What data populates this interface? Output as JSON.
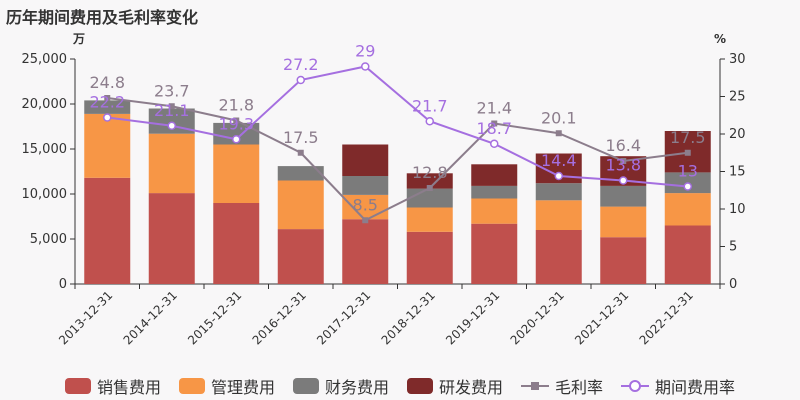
{
  "title": "历年期间费用及毛利率变化",
  "colors": {
    "sales": "#c0504d",
    "admin": "#f79646",
    "finance": "#7b7b7b",
    "rd": "#7f2a2a",
    "gross": "#8c7d8c",
    "period": "#a56fe0"
  },
  "chart_data": {
    "type": "bar",
    "title": "历年期间费用及毛利率变化",
    "categories": [
      "2013-12-31",
      "2014-12-31",
      "2015-12-31",
      "2016-12-31",
      "2017-12-31",
      "2018-12-31",
      "2019-12-31",
      "2020-12-31",
      "2021-12-31",
      "2022-12-31"
    ],
    "y_left": {
      "unit": "万",
      "ylim": [
        0,
        25000
      ],
      "ticks": [
        "0",
        "5,000",
        "10,000",
        "15,000",
        "20,000",
        "25,000"
      ]
    },
    "y_right": {
      "unit": "%",
      "ylim": [
        0,
        30
      ],
      "ticks": [
        "0",
        "5",
        "10",
        "15",
        "20",
        "25",
        "30"
      ]
    },
    "bar_series": [
      {
        "key": "sales",
        "name": "销售费用",
        "values": [
          11800,
          10100,
          9000,
          6100,
          7200,
          5800,
          6700,
          6000,
          5200,
          6500
        ]
      },
      {
        "key": "admin",
        "name": "管理费用",
        "values": [
          7100,
          6600,
          6500,
          5400,
          2700,
          2700,
          2800,
          3300,
          3400,
          3600
        ]
      },
      {
        "key": "finance",
        "name": "财务费用",
        "values": [
          1500,
          2800,
          2400,
          1600,
          2100,
          2100,
          1400,
          1900,
          2300,
          2300
        ]
      },
      {
        "key": "rd",
        "name": "研发费用",
        "values": [
          0,
          0,
          0,
          0,
          3500,
          1700,
          2400,
          3300,
          3300,
          4600
        ]
      }
    ],
    "line_series": [
      {
        "key": "gross",
        "name": "毛利率",
        "values": [
          24.8,
          23.7,
          21.8,
          17.5,
          8.5,
          12.8,
          21.4,
          20.1,
          16.4,
          17.5
        ],
        "labels": [
          "24.8",
          "23.7",
          "21.8",
          "17.5",
          "8.5",
          "12.8",
          "21.4",
          "20.1",
          "16.4",
          "17.5"
        ]
      },
      {
        "key": "period",
        "name": "期间费用率",
        "values": [
          22.2,
          21.1,
          19.3,
          27.2,
          29,
          21.7,
          18.7,
          14.4,
          13.8,
          13
        ],
        "labels": [
          "22.2",
          "21.1",
          "19.3",
          "27.2",
          "29",
          "21.7",
          "18.7",
          "14.4",
          "13.8",
          "13"
        ]
      }
    ],
    "legend_position": "bottom",
    "grid": false
  },
  "legend": [
    {
      "label": "销售费用",
      "kind": "bar",
      "key": "sales"
    },
    {
      "label": "管理费用",
      "kind": "bar",
      "key": "admin"
    },
    {
      "label": "财务费用",
      "kind": "bar",
      "key": "finance"
    },
    {
      "label": "研发费用",
      "kind": "bar",
      "key": "rd"
    },
    {
      "label": "毛利率",
      "kind": "line-square",
      "key": "gross"
    },
    {
      "label": "期间费用率",
      "kind": "line-circle",
      "key": "period"
    }
  ]
}
